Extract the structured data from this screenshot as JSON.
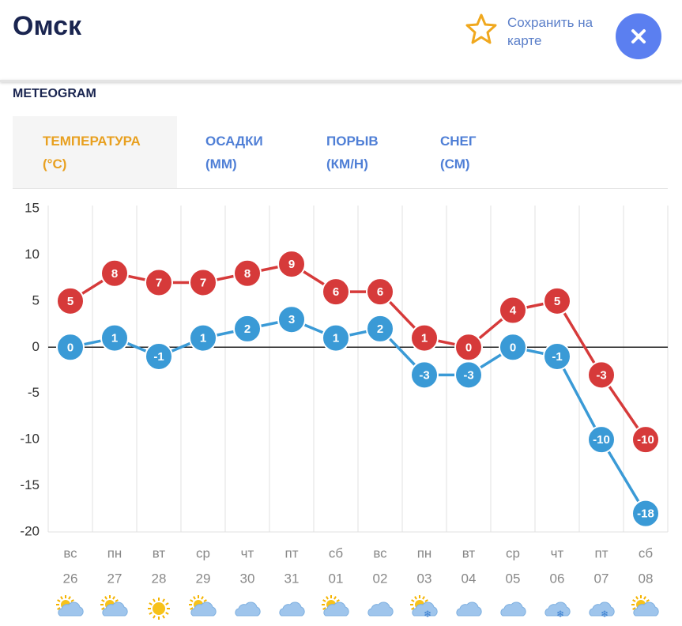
{
  "header": {
    "title": "Омск",
    "save_label_1": "Сохранить на",
    "save_label_2": "карте"
  },
  "section_title": "METEOGRAM",
  "tabs": [
    {
      "label": "ТЕМПЕРАТУРА",
      "unit": "(°C)"
    },
    {
      "label": "ОСАДКИ",
      "unit": "(ММ)"
    },
    {
      "label": "ПОРЫВ",
      "unit": "(КМ/Н)"
    },
    {
      "label": "СНЕГ",
      "unit": "(СМ)"
    }
  ],
  "chart_data": {
    "type": "line",
    "categories": [
      "вс",
      "пн",
      "вт",
      "ср",
      "чт",
      "пт",
      "сб",
      "вс",
      "пн",
      "вт",
      "ср",
      "чт",
      "пт",
      "сб"
    ],
    "dates": [
      "26",
      "27",
      "28",
      "29",
      "30",
      "31",
      "01",
      "02",
      "03",
      "04",
      "05",
      "06",
      "07",
      "08"
    ],
    "series": [
      {
        "color": "#d63a3a",
        "values": [
          5,
          8,
          7,
          7,
          8,
          9,
          6,
          6,
          1,
          0,
          4,
          5,
          -3,
          -10
        ]
      },
      {
        "color": "#3a9ad6",
        "values": [
          0,
          1,
          -1,
          1,
          2,
          3,
          1,
          2,
          -3,
          -3,
          0,
          -1,
          -10,
          -18
        ]
      }
    ],
    "ylim": [
      -20,
      15
    ],
    "yticks": [
      -20,
      -15,
      -10,
      -5,
      0,
      5,
      10,
      15
    ],
    "grid": true
  }
}
